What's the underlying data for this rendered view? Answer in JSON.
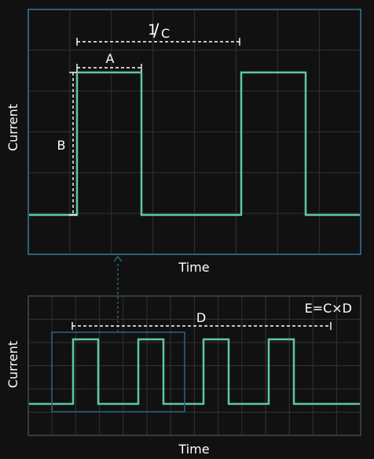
{
  "colors": {
    "background": "#111111",
    "grid": "#333333",
    "top_frame": "#2b5f78",
    "bottom_frame": "#3a3a3a",
    "zoom_box": "#2b5f78",
    "wave": "#5ec8a0",
    "annotation": "#ffffff",
    "arrow": "#2b5f78"
  },
  "top_panel": {
    "ylabel": "Current",
    "xlabel": "Time",
    "pulse_width_label": "A",
    "amplitude_label": "B",
    "period_label_num": "1",
    "period_label_den": "C"
  },
  "bottom_panel": {
    "ylabel": "Current",
    "xlabel": "Time",
    "duration_label": "D",
    "equation": "E=C×D"
  }
}
